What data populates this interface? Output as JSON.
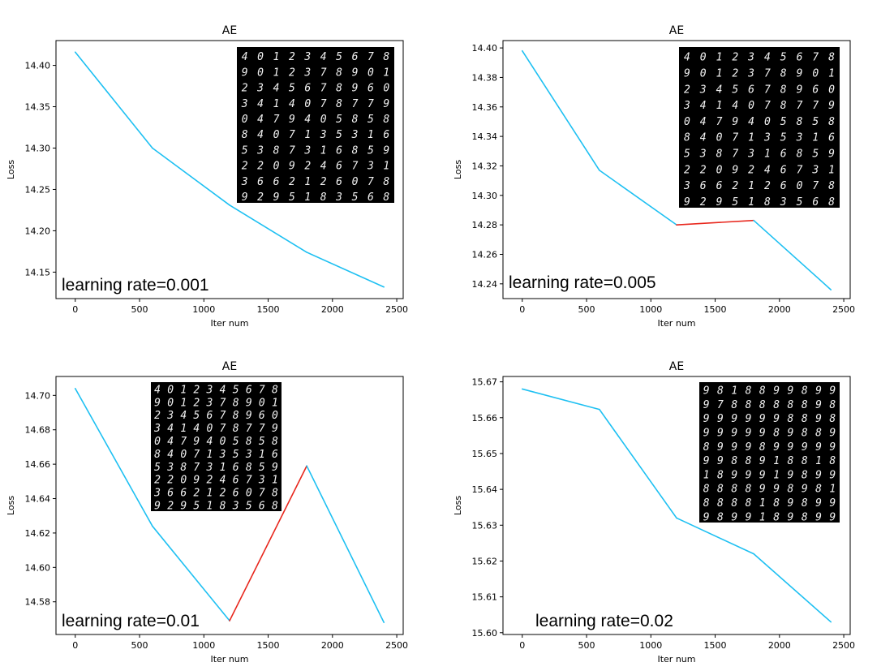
{
  "colors": {
    "normal_segment": "#1ec0f2",
    "increase_segment": "#e8271d",
    "inset_background": "#000000",
    "digit_color": "#f2f2f2"
  },
  "chart_data": [
    {
      "type": "line",
      "title": "AE",
      "xlabel": "Iter num",
      "ylabel": "Loss",
      "annotation": "learning rate=0.001",
      "x": [
        0,
        600,
        1200,
        1800,
        2400
      ],
      "y": [
        14.416,
        14.3,
        14.231,
        14.174,
        14.132
      ],
      "xlim": [
        -150,
        2550
      ],
      "ylim": [
        14.118,
        14.43
      ],
      "xticks": [
        "0",
        "500",
        "1000",
        "1500",
        "2000",
        "2500"
      ],
      "yticks": [
        "14.15",
        "14.20",
        "14.25",
        "14.30",
        "14.35",
        "14.40"
      ],
      "inset_digits": [
        "4012345678",
        "9012378901",
        "2345678960",
        "3414078779",
        "0479405858",
        "8407135316",
        "5387316859",
        "2209246731",
        "3662126078",
        "9295183568"
      ]
    },
    {
      "type": "line",
      "title": "AE",
      "xlabel": "Iter num",
      "ylabel": "Loss",
      "annotation": "learning rate=0.005",
      "x": [
        0,
        600,
        1200,
        1800,
        2400
      ],
      "y": [
        14.398,
        14.317,
        14.28,
        14.283,
        14.236
      ],
      "xlim": [
        -150,
        2550
      ],
      "ylim": [
        14.23,
        14.405
      ],
      "xticks": [
        "0",
        "500",
        "1000",
        "1500",
        "2000",
        "2500"
      ],
      "yticks": [
        "14.24",
        "14.26",
        "14.28",
        "14.30",
        "14.32",
        "14.34",
        "14.36",
        "14.38",
        "14.40"
      ],
      "inset_digits": [
        "4012345678",
        "9012378901",
        "2345678960",
        "3414078779",
        "0479405858",
        "8407135316",
        "5387316859",
        "2209246731",
        "3662126078",
        "9295183568"
      ]
    },
    {
      "type": "line",
      "title": "AE",
      "xlabel": "Iter num",
      "ylabel": "Loss",
      "annotation": "learning rate=0.01",
      "x": [
        0,
        600,
        1200,
        1800,
        2400
      ],
      "y": [
        14.704,
        14.624,
        14.569,
        14.659,
        14.568
      ],
      "xlim": [
        -150,
        2550
      ],
      "ylim": [
        14.561,
        14.711
      ],
      "xticks": [
        "0",
        "500",
        "1000",
        "1500",
        "2000",
        "2500"
      ],
      "yticks": [
        "14.58",
        "14.60",
        "14.62",
        "14.64",
        "14.66",
        "14.68",
        "14.70"
      ],
      "inset_digits": [
        "4012345678",
        "9012378901",
        "2345678960",
        "3414078779",
        "0479405858",
        "8407135316",
        "5387316859",
        "2209246731",
        "3662126078",
        "9295183568"
      ]
    },
    {
      "type": "line",
      "title": "AE",
      "xlabel": "Iter num",
      "ylabel": "Loss",
      "annotation": "learning rate=0.02",
      "x": [
        0,
        600,
        1200,
        1800,
        2400
      ],
      "y": [
        15.668,
        15.6623,
        15.632,
        15.622,
        15.603
      ],
      "xlim": [
        -150,
        2550
      ],
      "ylim": [
        15.5995,
        15.6715
      ],
      "xticks": [
        "0",
        "500",
        "1000",
        "1500",
        "2000",
        "2500"
      ],
      "yticks": [
        "15.60",
        "15.61",
        "15.62",
        "15.63",
        "15.64",
        "15.65",
        "15.66",
        "15.67"
      ],
      "inset_digits": [
        "9818899899",
        "9788888898",
        "9999998898",
        "9999989889",
        "8999899999",
        "9988918818",
        "1899919899",
        "8888998981",
        "8888189899",
        "9899189899"
      ]
    }
  ]
}
